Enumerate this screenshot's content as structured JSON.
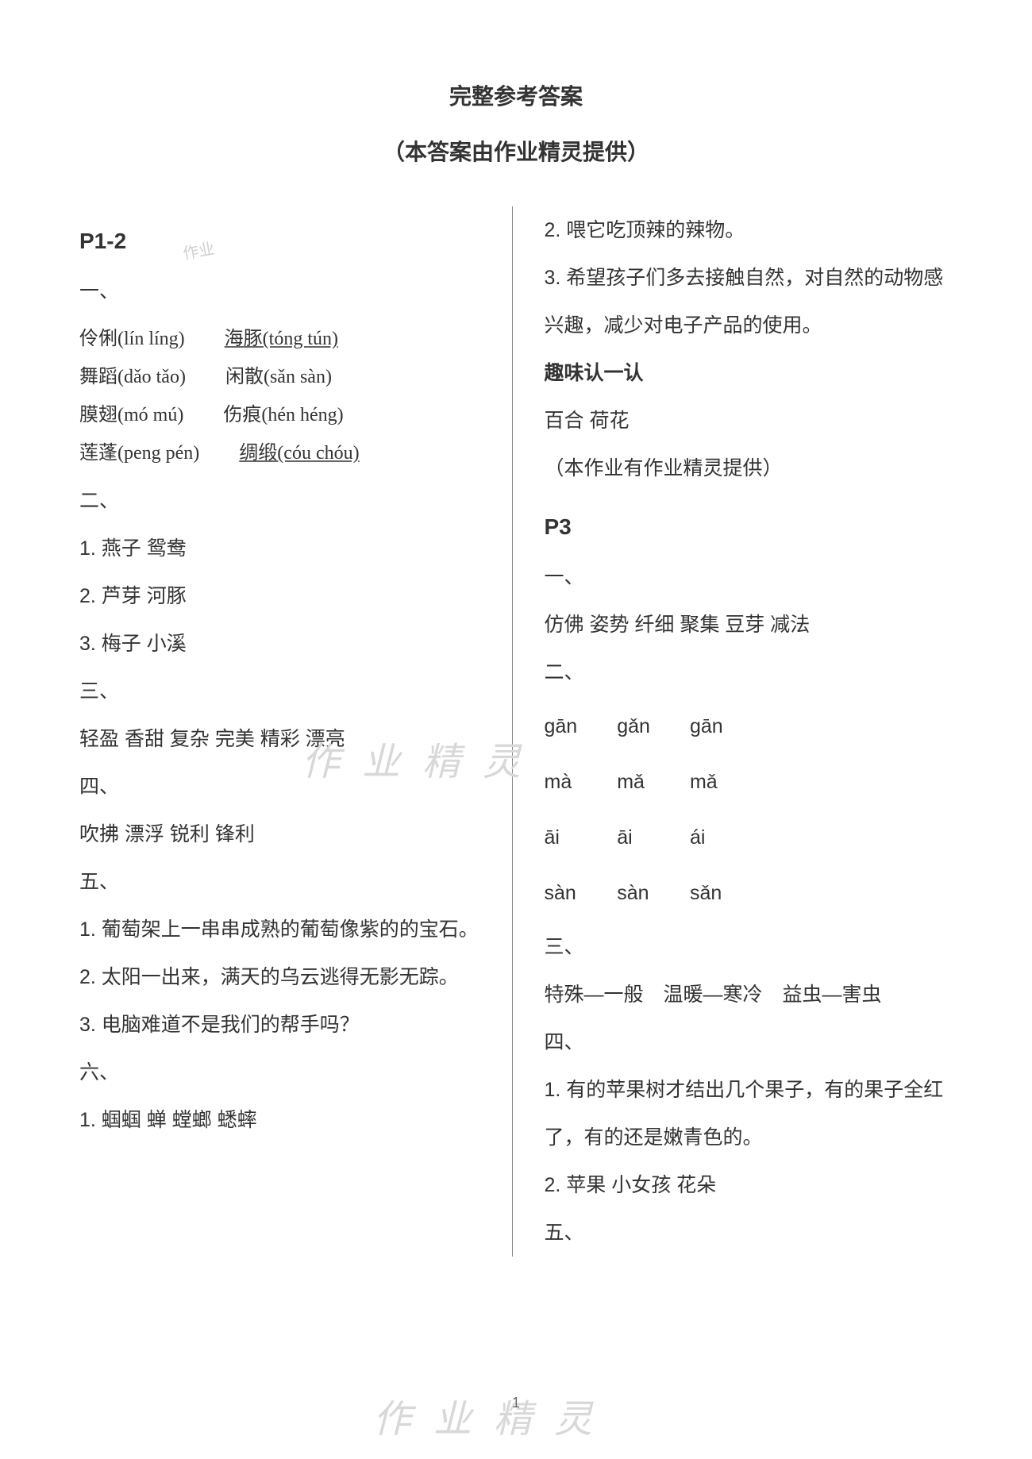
{
  "header": {
    "main_title": "完整参考答案",
    "sub_title": "（本答案由作业精灵提供）"
  },
  "left": {
    "page_ref": "P1-2",
    "sec1": "一、",
    "pinyin": {
      "r1a": "伶俐(lín  líng)",
      "r1b": "海豚(tóng  tún)",
      "r2a": "舞蹈(dǎo  tǎo)",
      "r2b": "闲散(sǎn  sàn)",
      "r3a": "膜翅(mó  mú)",
      "r3b": "伤痕(hén  héng)",
      "r4a": "莲蓬(peng  pén)",
      "r4b": "绸缎(cóu  chóu)"
    },
    "sec2": "二、",
    "s2_1": "1. 燕子  鸳鸯",
    "s2_2": "2. 芦芽  河豚",
    "s2_3": "3. 梅子  小溪",
    "sec3": "三、",
    "s3_1": "轻盈  香甜  复杂  完美  精彩  漂亮",
    "sec4": "四、",
    "s4_1": "吹拂  漂浮  锐利  锋利",
    "sec5": "五、",
    "s5_1": "1. 葡萄架上一串串成熟的葡萄像紫的的宝石。",
    "s5_2": "2. 太阳一出来，满天的乌云逃得无影无踪。",
    "s5_3": "3. 电脑难道不是我们的帮手吗？",
    "sec6": "六、",
    "s6_1": "1. 蝈蝈  蝉  螳螂  蟋蟀"
  },
  "right": {
    "r1": "2. 喂它吃顶辣的辣物。",
    "r2": "3. 希望孩子们多去接触自然，对自然的动物感兴趣，减少对电子产品的使用。",
    "fun_title": "趣味认一认",
    "fun_1": "百合  荷花",
    "credit": "（本作业有作业精灵提供）",
    "page_ref": "P3",
    "sec1": "一、",
    "s1_1": "仿佛  姿势  纤细  聚集  豆芽  减法",
    "sec2": "二、",
    "pg": {
      "a1": "gān",
      "a2": "gǎn",
      "a3": "gān",
      "b1": "mà",
      "b2": "mǎ",
      "b3": "mǎ",
      "c1": "āi",
      "c2": "āi",
      "c3": "ái",
      "d1": "sàn",
      "d2": "sàn",
      "d3": "sǎn"
    },
    "sec3": "三、",
    "s3_1": "特殊—一般　温暖—寒冷　益虫—害虫",
    "sec4": "四、",
    "s4_1": "1. 有的苹果树才结出几个果子，有的果子全红了，有的还是嫩青色的。",
    "s4_2": "2. 苹果  小女孩  花朵",
    "sec5": "五、"
  },
  "watermarks": {
    "wm1": "作 业 精 灵",
    "wm2": "作 业 精 灵",
    "wm_small": "作业"
  },
  "page_number": "1"
}
